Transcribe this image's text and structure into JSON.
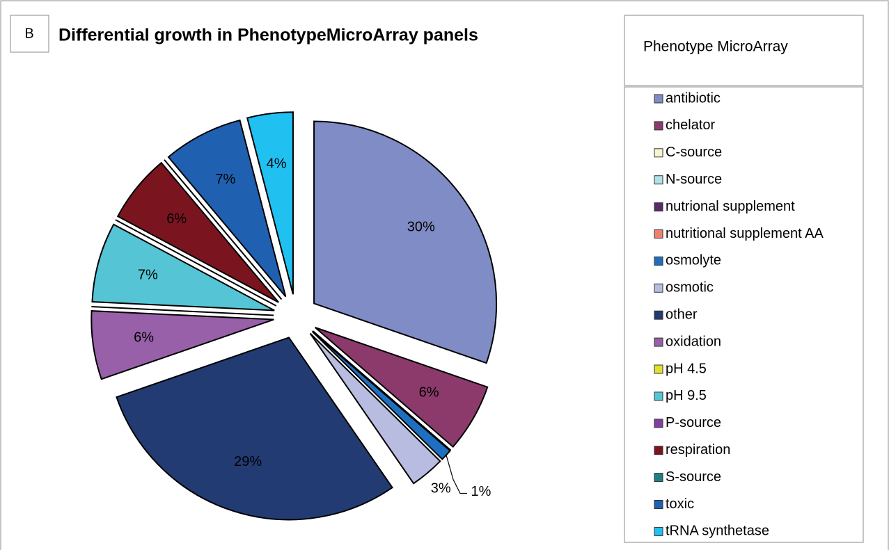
{
  "panel_label": "B",
  "chart_data": {
    "type": "pie",
    "title": "Differential growth in PhenotypeMicroArray panels",
    "legend_title": "Phenotype MicroArray",
    "legend": "right",
    "categories": [
      "antibiotic",
      "chelator",
      "C-source",
      "N-source",
      "nutrional supplement",
      "nutritional supplement AA",
      "osmolyte",
      "osmotic",
      "other",
      "oxidation",
      "pH 4.5",
      "pH 9.5",
      "P-source",
      "respiration",
      "S-source",
      "toxic",
      "tRNA synthetase"
    ],
    "values": [
      30,
      6,
      0,
      0,
      0,
      0,
      1,
      3,
      29,
      6,
      0,
      7,
      0,
      6,
      0,
      7,
      4
    ],
    "value_labels": [
      "30%",
      "6%",
      null,
      null,
      null,
      null,
      "1%",
      "3%",
      "29%",
      "6%",
      null,
      "7%",
      null,
      "6%",
      null,
      "7%",
      "4%"
    ],
    "colors": [
      "#7f8cc6",
      "#8b3a6b",
      "#f5f5d0",
      "#b0e0e8",
      "#5a2a6a",
      "#f08070",
      "#1f6fc0",
      "#b8bce0",
      "#233b73",
      "#9860a8",
      "#e0e030",
      "#55c4d4",
      "#8040a0",
      "#7a1520",
      "#208080",
      "#2060b0",
      "#20c0f0"
    ]
  }
}
